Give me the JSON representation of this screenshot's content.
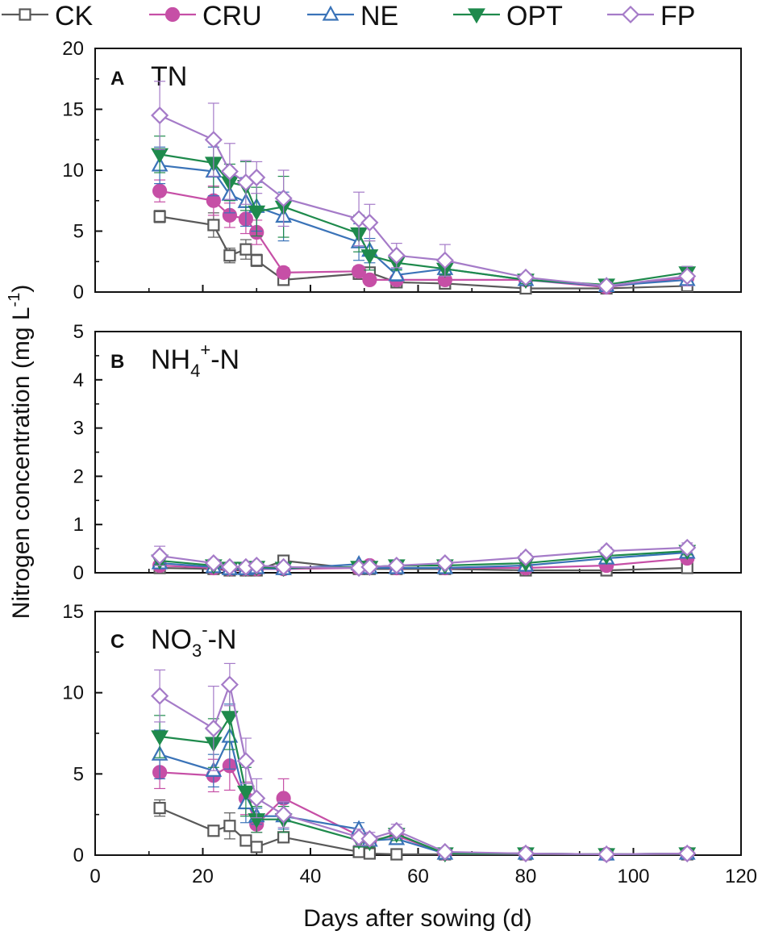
{
  "figure": {
    "ylabel": "Nitrogen concentration (mg L",
    "ylabel_sup": "-1",
    "ylabel_tail": ")",
    "xlabel": "Days after sowing (d)"
  },
  "legend": [
    {
      "name": "CK",
      "color": "#595959",
      "marker": "square-open"
    },
    {
      "name": "CRU",
      "color": "#C64FA6",
      "marker": "circle-filled"
    },
    {
      "name": "NE",
      "color": "#3A73B8",
      "marker": "triangle-up-open"
    },
    {
      "name": "OPT",
      "color": "#1E8A4C",
      "marker": "triangle-down-filled"
    },
    {
      "name": "FP",
      "color": "#A57BC8",
      "marker": "diamond-open"
    }
  ],
  "chart_data": [
    {
      "type": "line",
      "panel": "A",
      "title": "TN",
      "title_parts": {
        "main": "TN",
        "sub": "",
        "sup": "",
        "suffix": ""
      },
      "xlabel": "Days after sowing (d)",
      "ylabel": "Nitrogen concentration (mg L-1)",
      "xlim": [
        0,
        120
      ],
      "ylim": [
        0,
        20
      ],
      "yticks": [
        0,
        5,
        10,
        15,
        20
      ],
      "xticks": [
        0,
        20,
        40,
        60,
        80,
        100,
        120
      ],
      "series": [
        {
          "name": "CK",
          "x": [
            12,
            22,
            25,
            28,
            30,
            35,
            49,
            51,
            56,
            65,
            80,
            95,
            110
          ],
          "values": [
            6.2,
            5.5,
            3.0,
            3.5,
            2.6,
            1.0,
            1.5,
            1.6,
            0.8,
            0.7,
            0.3,
            0.3,
            0.5
          ],
          "err": [
            0.5,
            1.0,
            0.6,
            0.8,
            0.5,
            0.3,
            0.3,
            0.3,
            0.2,
            0.2,
            0.1,
            0.1,
            0.2
          ]
        },
        {
          "name": "CRU",
          "x": [
            12,
            22,
            25,
            28,
            30,
            35,
            49,
            51,
            56,
            65,
            80,
            95,
            110
          ],
          "values": [
            8.3,
            7.5,
            6.3,
            6.0,
            4.9,
            1.6,
            1.7,
            1.0,
            1.0,
            1.0,
            1.0,
            0.4,
            1.2
          ],
          "err": [
            0.9,
            1.2,
            1.0,
            1.2,
            1.0,
            0.4,
            0.4,
            0.3,
            0.3,
            0.3,
            0.2,
            0.2,
            0.3
          ]
        },
        {
          "name": "NE",
          "x": [
            12,
            22,
            25,
            28,
            30,
            35,
            49,
            51,
            56,
            65,
            80,
            95,
            110
          ],
          "values": [
            10.4,
            9.9,
            8.0,
            7.4,
            7.0,
            6.2,
            4.1,
            3.4,
            1.4,
            1.9,
            1.0,
            0.5,
            1.0
          ],
          "err": [
            1.5,
            2.0,
            1.5,
            2.0,
            2.0,
            2.0,
            1.5,
            1.0,
            0.5,
            0.5,
            0.3,
            0.3,
            0.4
          ]
        },
        {
          "name": "OPT",
          "x": [
            12,
            22,
            25,
            28,
            30,
            35,
            49,
            51,
            56,
            65,
            80,
            95,
            110
          ],
          "values": [
            11.3,
            10.6,
            9.0,
            8.7,
            6.6,
            7.0,
            4.8,
            3.0,
            2.4,
            1.9,
            1.0,
            0.6,
            1.6
          ],
          "err": [
            1.5,
            2.0,
            1.5,
            2.0,
            2.0,
            2.5,
            1.5,
            1.2,
            0.6,
            0.5,
            0.3,
            0.3,
            0.5
          ]
        },
        {
          "name": "FP",
          "x": [
            12,
            22,
            25,
            28,
            30,
            35,
            49,
            51,
            56,
            65,
            80,
            95,
            110
          ],
          "values": [
            14.5,
            12.5,
            9.9,
            9.0,
            9.4,
            7.7,
            6.0,
            5.7,
            3.0,
            2.6,
            1.2,
            0.5,
            1.3
          ],
          "err": [
            2.8,
            3.0,
            2.3,
            1.8,
            1.3,
            2.3,
            2.2,
            1.5,
            1.0,
            1.3,
            0.3,
            0.3,
            0.8
          ]
        }
      ]
    },
    {
      "type": "line",
      "panel": "B",
      "title": "NH4+-N",
      "title_parts": {
        "main": "NH",
        "sub": "4",
        "sup": "+",
        "suffix": "-N"
      },
      "xlabel": "Days after sowing (d)",
      "ylabel": "Nitrogen concentration (mg L-1)",
      "xlim": [
        0,
        120
      ],
      "ylim": [
        0,
        5
      ],
      "yticks": [
        0,
        1,
        2,
        3,
        4,
        5
      ],
      "xticks": [
        0,
        20,
        40,
        60,
        80,
        100,
        120
      ],
      "series": [
        {
          "name": "CK",
          "x": [
            12,
            22,
            25,
            28,
            30,
            35,
            49,
            51,
            56,
            65,
            80,
            95,
            110
          ],
          "values": [
            0.1,
            0.08,
            0.05,
            0.05,
            0.05,
            0.25,
            0.08,
            0.08,
            0.08,
            0.08,
            0.05,
            0.05,
            0.1
          ],
          "err": [
            0.05,
            0.03,
            0.02,
            0.02,
            0.02,
            0.05,
            0.03,
            0.03,
            0.03,
            0.03,
            0.02,
            0.02,
            0.03
          ]
        },
        {
          "name": "CRU",
          "x": [
            12,
            22,
            25,
            28,
            30,
            35,
            49,
            51,
            56,
            65,
            80,
            95,
            110
          ],
          "values": [
            0.15,
            0.1,
            0.08,
            0.08,
            0.08,
            0.08,
            0.1,
            0.15,
            0.1,
            0.1,
            0.1,
            0.15,
            0.3
          ],
          "err": [
            0.05,
            0.03,
            0.03,
            0.03,
            0.03,
            0.03,
            0.03,
            0.05,
            0.03,
            0.03,
            0.03,
            0.05,
            0.08
          ]
        },
        {
          "name": "NE",
          "x": [
            12,
            22,
            25,
            28,
            30,
            35,
            49,
            51,
            56,
            65,
            80,
            95,
            110
          ],
          "values": [
            0.2,
            0.12,
            0.08,
            0.08,
            0.1,
            0.08,
            0.18,
            0.1,
            0.1,
            0.1,
            0.15,
            0.3,
            0.42
          ],
          "err": [
            0.08,
            0.05,
            0.03,
            0.03,
            0.03,
            0.03,
            0.05,
            0.03,
            0.03,
            0.03,
            0.05,
            0.08,
            0.08
          ]
        },
        {
          "name": "OPT",
          "x": [
            12,
            22,
            25,
            28,
            30,
            35,
            49,
            51,
            56,
            65,
            80,
            95,
            110
          ],
          "values": [
            0.25,
            0.15,
            0.1,
            0.1,
            0.12,
            0.1,
            0.12,
            0.12,
            0.15,
            0.15,
            0.2,
            0.35,
            0.45
          ],
          "err": [
            0.08,
            0.05,
            0.03,
            0.03,
            0.03,
            0.03,
            0.05,
            0.05,
            0.05,
            0.05,
            0.05,
            0.08,
            0.08
          ]
        },
        {
          "name": "FP",
          "x": [
            12,
            22,
            25,
            28,
            30,
            35,
            49,
            51,
            56,
            65,
            80,
            95,
            110
          ],
          "values": [
            0.35,
            0.2,
            0.12,
            0.12,
            0.15,
            0.12,
            0.1,
            0.12,
            0.15,
            0.2,
            0.32,
            0.45,
            0.52
          ],
          "err": [
            0.2,
            0.08,
            0.05,
            0.05,
            0.05,
            0.05,
            0.05,
            0.05,
            0.05,
            0.05,
            0.08,
            0.08,
            0.1
          ]
        }
      ]
    },
    {
      "type": "line",
      "panel": "C",
      "title": "NO3--N",
      "title_parts": {
        "main": "NO",
        "sub": "3",
        "sup": "-",
        "suffix": "-N"
      },
      "xlabel": "Days after sowing (d)",
      "ylabel": "Nitrogen concentration (mg L-1)",
      "xlim": [
        0,
        120
      ],
      "ylim": [
        0,
        15
      ],
      "yticks": [
        0,
        5,
        10,
        15
      ],
      "xticks": [
        0,
        20,
        40,
        60,
        80,
        100,
        120
      ],
      "series": [
        {
          "name": "CK",
          "x": [
            12,
            22,
            25,
            28,
            30,
            35,
            49,
            51,
            56,
            65,
            80,
            95,
            110
          ],
          "values": [
            2.9,
            1.5,
            1.8,
            0.9,
            0.5,
            1.1,
            0.2,
            0.1,
            0.05,
            0.05,
            0.05,
            0.05,
            0.05
          ],
          "err": [
            0.5,
            0.3,
            0.8,
            0.3,
            0.2,
            0.3,
            0.1,
            0.05,
            0.05,
            0.05,
            0.05,
            0.05,
            0.05
          ]
        },
        {
          "name": "CRU",
          "x": [
            12,
            22,
            25,
            28,
            30,
            35,
            49,
            51,
            56,
            65,
            80,
            95,
            110
          ],
          "values": [
            5.1,
            4.9,
            5.5,
            3.5,
            1.9,
            3.5,
            1.2,
            0.9,
            1.2,
            0.1,
            0.1,
            0.05,
            0.1
          ],
          "err": [
            1.0,
            1.0,
            1.5,
            1.0,
            0.5,
            1.2,
            0.3,
            0.3,
            0.3,
            0.05,
            0.05,
            0.05,
            0.05
          ]
        },
        {
          "name": "NE",
          "x": [
            12,
            22,
            25,
            28,
            30,
            35,
            49,
            51,
            56,
            65,
            80,
            95,
            110
          ],
          "values": [
            6.2,
            5.2,
            7.3,
            3.2,
            2.4,
            2.4,
            1.6,
            0.9,
            1.0,
            0.1,
            0.1,
            0.05,
            0.1
          ],
          "err": [
            1.5,
            1.0,
            2.0,
            1.2,
            0.5,
            0.8,
            0.4,
            0.3,
            0.3,
            0.05,
            0.05,
            0.05,
            0.05
          ]
        },
        {
          "name": "OPT",
          "x": [
            12,
            22,
            25,
            28,
            30,
            35,
            49,
            51,
            56,
            65,
            80,
            95,
            110
          ],
          "values": [
            7.3,
            6.9,
            8.5,
            3.9,
            2.2,
            2.2,
            0.9,
            0.8,
            1.3,
            0.1,
            0.1,
            0.05,
            0.1
          ],
          "err": [
            1.3,
            1.5,
            2.0,
            1.5,
            0.8,
            0.8,
            0.4,
            0.3,
            0.4,
            0.05,
            0.05,
            0.05,
            0.05
          ]
        },
        {
          "name": "FP",
          "x": [
            12,
            22,
            25,
            28,
            30,
            35,
            49,
            51,
            56,
            65,
            80,
            95,
            110
          ],
          "values": [
            9.8,
            7.8,
            10.5,
            5.8,
            3.5,
            2.5,
            1.1,
            1.0,
            1.5,
            0.2,
            0.1,
            0.05,
            0.1
          ],
          "err": [
            1.6,
            2.6,
            1.3,
            1.4,
            1.2,
            0.8,
            0.5,
            0.4,
            0.4,
            0.05,
            0.05,
            0.05,
            0.05
          ]
        }
      ]
    }
  ]
}
